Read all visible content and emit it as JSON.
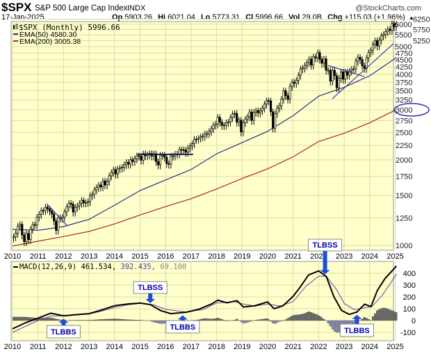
{
  "header": {
    "symbol": "$SPX",
    "name": "S&P 500 Large Cap Index",
    "exchange": "INDX",
    "watermark": "@StockCharts.com",
    "date": "17-Jan-2025",
    "op_label": "Op",
    "op": "5903.26",
    "hi_label": "Hi",
    "hi": "6021.04",
    "lo_label": "Lo",
    "lo": "5773.31",
    "cl_label": "Cl",
    "cl": "5996.66",
    "vol_label": "Vol",
    "vol": "29.0B",
    "chg_label": "Chg",
    "chg": "+115.03 (+1.96%)",
    "chg_arrow": "▲"
  },
  "legend": {
    "price": "$SPX (Monthly) 5996.66",
    "ema50": "EMA(50) 4580.30",
    "ema200": "EMA(200) 3005.38",
    "macd_name": "MACD(12,26,9) 461.534,",
    "macd_signal": "392.435,",
    "macd_hist": "69.100"
  },
  "colors": {
    "panel_bg": "#ffffcc",
    "grid": "#dcdcaa",
    "ema50": "#2a2a8c",
    "ema200": "#b22222",
    "annotation": "#0000aa",
    "arrow": "#1a4fd6",
    "hist": "#666666",
    "hist_neg": "#8888bb"
  },
  "chart_data": [
    {
      "type": "candlestick",
      "title": "$SPX (Monthly)",
      "scale": "log",
      "start": "2010-01",
      "yticks": [
        1000,
        1250,
        1500,
        1750,
        2000,
        2250,
        2500,
        2750,
        3000,
        3250,
        3500,
        3750,
        4000,
        4250,
        4500,
        4750,
        5000,
        5250,
        5500,
        5750,
        6000,
        6250
      ],
      "xticks": [
        "2010",
        "2011",
        "2012",
        "2013",
        "2014",
        "2015",
        "2016",
        "2017",
        "2018",
        "2019",
        "2020",
        "2021",
        "2022",
        "2023",
        "2024",
        "2025"
      ],
      "closes": [
        1074,
        1104,
        1169,
        1187,
        1089,
        1031,
        1102,
        1049,
        1141,
        1183,
        1181,
        1258,
        1286,
        1327,
        1326,
        1364,
        1345,
        1321,
        1292,
        1219,
        1131,
        1253,
        1247,
        1258,
        1312,
        1366,
        1408,
        1398,
        1310,
        1362,
        1379,
        1407,
        1441,
        1412,
        1416,
        1426,
        1498,
        1515,
        1569,
        1598,
        1631,
        1606,
        1686,
        1633,
        1682,
        1757,
        1806,
        1848,
        1783,
        1859,
        1872,
        1884,
        1924,
        1960,
        1931,
        2003,
        1972,
        2018,
        2068,
        2059,
        1995,
        2105,
        2068,
        2086,
        2107,
        2063,
        2104,
        1972,
        1920,
        2079,
        2080,
        2044,
        1940,
        1932,
        2060,
        2065,
        2097,
        2099,
        2174,
        2171,
        2168,
        2126,
        2199,
        2239,
        2279,
        2364,
        2363,
        2384,
        2412,
        2423,
        2470,
        2472,
        2519,
        2575,
        2648,
        2674,
        2824,
        2714,
        2641,
        2648,
        2705,
        2718,
        2816,
        2902,
        2914,
        2712,
        2760,
        2507,
        2704,
        2784,
        2834,
        2946,
        2752,
        2942,
        2980,
        2926,
        2977,
        3038,
        3141,
        3231,
        3226,
        2954,
        2585,
        2912,
        3044,
        3100,
        3271,
        3500,
        3363,
        3270,
        3622,
        3756,
        3714,
        3811,
        3973,
        4181,
        4204,
        4298,
        4395,
        4523,
        4308,
        4605,
        4567,
        4766,
        4516,
        4374,
        4530,
        4132,
        4132,
        3785,
        4130,
        3955,
        3586,
        3872,
        4080,
        3840,
        4077,
        3970,
        4109,
        4169,
        4180,
        4450,
        4589,
        4508,
        4288,
        4194,
        4568,
        4770,
        4846,
        5096,
        5254,
        5036,
        5278,
        5460,
        5522,
        5648,
        5762,
        5705,
        6032,
        5882,
        5997
      ],
      "ema50": [
        [
          2010,
          1140
        ],
        [
          2011,
          1130
        ],
        [
          2012,
          1165
        ],
        [
          2013,
          1235
        ],
        [
          2014,
          1385
        ],
        [
          2015,
          1560
        ],
        [
          2016,
          1700
        ],
        [
          2017,
          1850
        ],
        [
          2018,
          2100
        ],
        [
          2019,
          2300
        ],
        [
          2020,
          2520
        ],
        [
          2021,
          2860
        ],
        [
          2022,
          3350
        ],
        [
          2023,
          3600
        ],
        [
          2024,
          3950
        ],
        [
          2025.05,
          4580.3
        ]
      ],
      "ema200": [
        [
          2010,
          995
        ],
        [
          2011,
          1035
        ],
        [
          2012,
          1075
        ],
        [
          2013,
          1120
        ],
        [
          2014,
          1190
        ],
        [
          2015,
          1280
        ],
        [
          2016,
          1370
        ],
        [
          2017,
          1460
        ],
        [
          2018,
          1580
        ],
        [
          2019,
          1720
        ],
        [
          2020,
          1860
        ],
        [
          2021,
          2050
        ],
        [
          2022,
          2320
        ],
        [
          2023,
          2480
        ],
        [
          2024,
          2700
        ],
        [
          2025.05,
          3005.38
        ]
      ],
      "trendlines": [
        [
          [
            2011.34,
            1402
          ],
          [
            2012.15,
            1171
          ]
        ],
        [
          [
            2014.9,
            2091
          ],
          [
            2017.08,
            2091
          ]
        ],
        [
          [
            2022.37,
            4296
          ],
          [
            2023.79,
            3925
          ]
        ],
        [
          [
            2022.53,
            3279
          ],
          [
            2024.93,
            5120
          ]
        ]
      ],
      "highlighted_level": 3000
    },
    {
      "type": "line",
      "title": "MACD(12,26,9)",
      "yticks": [
        400,
        300,
        200,
        100,
        0,
        -100
      ],
      "macd": [
        [
          2010,
          -70
        ],
        [
          2010.5,
          -20
        ],
        [
          2011,
          20
        ],
        [
          2011.5,
          62
        ],
        [
          2012,
          40
        ],
        [
          2012.5,
          50
        ],
        [
          2013,
          58
        ],
        [
          2013.5,
          90
        ],
        [
          2014,
          125
        ],
        [
          2014.5,
          140
        ],
        [
          2015,
          148
        ],
        [
          2015.4,
          135
        ],
        [
          2015.8,
          85
        ],
        [
          2016.2,
          58
        ],
        [
          2016.8,
          70
        ],
        [
          2017.3,
          95
        ],
        [
          2017.8,
          140
        ],
        [
          2018.05,
          172
        ],
        [
          2018.4,
          150
        ],
        [
          2018.8,
          168
        ],
        [
          2019.05,
          115
        ],
        [
          2019.5,
          125
        ],
        [
          2020,
          158
        ],
        [
          2020.25,
          100
        ],
        [
          2020.6,
          125
        ],
        [
          2021,
          205
        ],
        [
          2021.3,
          290
        ],
        [
          2021.6,
          385
        ],
        [
          2022,
          420
        ],
        [
          2022.3,
          372
        ],
        [
          2022.6,
          200
        ],
        [
          2022.9,
          85
        ],
        [
          2023.2,
          52
        ],
        [
          2023.5,
          72
        ],
        [
          2023.8,
          138
        ],
        [
          2024.05,
          118
        ],
        [
          2024.3,
          255
        ],
        [
          2024.6,
          355
        ],
        [
          2025.05,
          461.534
        ]
      ],
      "signal": [
        [
          2010,
          -100
        ],
        [
          2010.5,
          -50
        ],
        [
          2011,
          0
        ],
        [
          2011.5,
          38
        ],
        [
          2012,
          40
        ],
        [
          2012.5,
          47
        ],
        [
          2013,
          55
        ],
        [
          2013.5,
          80
        ],
        [
          2014,
          110
        ],
        [
          2014.5,
          132
        ],
        [
          2015,
          145
        ],
        [
          2015.5,
          135
        ],
        [
          2016,
          95
        ],
        [
          2016.8,
          72
        ],
        [
          2017.5,
          95
        ],
        [
          2018,
          148
        ],
        [
          2018.7,
          160
        ],
        [
          2019,
          142
        ],
        [
          2019.5,
          122
        ],
        [
          2020,
          140
        ],
        [
          2020.5,
          122
        ],
        [
          2021,
          160
        ],
        [
          2021.5,
          290
        ],
        [
          2022,
          375
        ],
        [
          2022.3,
          375
        ],
        [
          2022.7,
          262
        ],
        [
          2023,
          145
        ],
        [
          2023.4,
          92
        ],
        [
          2023.8,
          108
        ],
        [
          2024.1,
          120
        ],
        [
          2024.5,
          215
        ],
        [
          2025.05,
          392.435
        ]
      ],
      "annotations": [
        {
          "label": "TLBSS",
          "t": 2015.4,
          "direction": "down"
        },
        {
          "label": "TLBSS",
          "t": 2022.25,
          "direction": "down"
        },
        {
          "label": "TLBBS",
          "t": 2012.0,
          "direction": "up"
        },
        {
          "label": "TLBBS",
          "t": 2016.67,
          "direction": "up"
        },
        {
          "label": "TLBBS",
          "t": 2023.5,
          "direction": "up"
        }
      ]
    }
  ]
}
